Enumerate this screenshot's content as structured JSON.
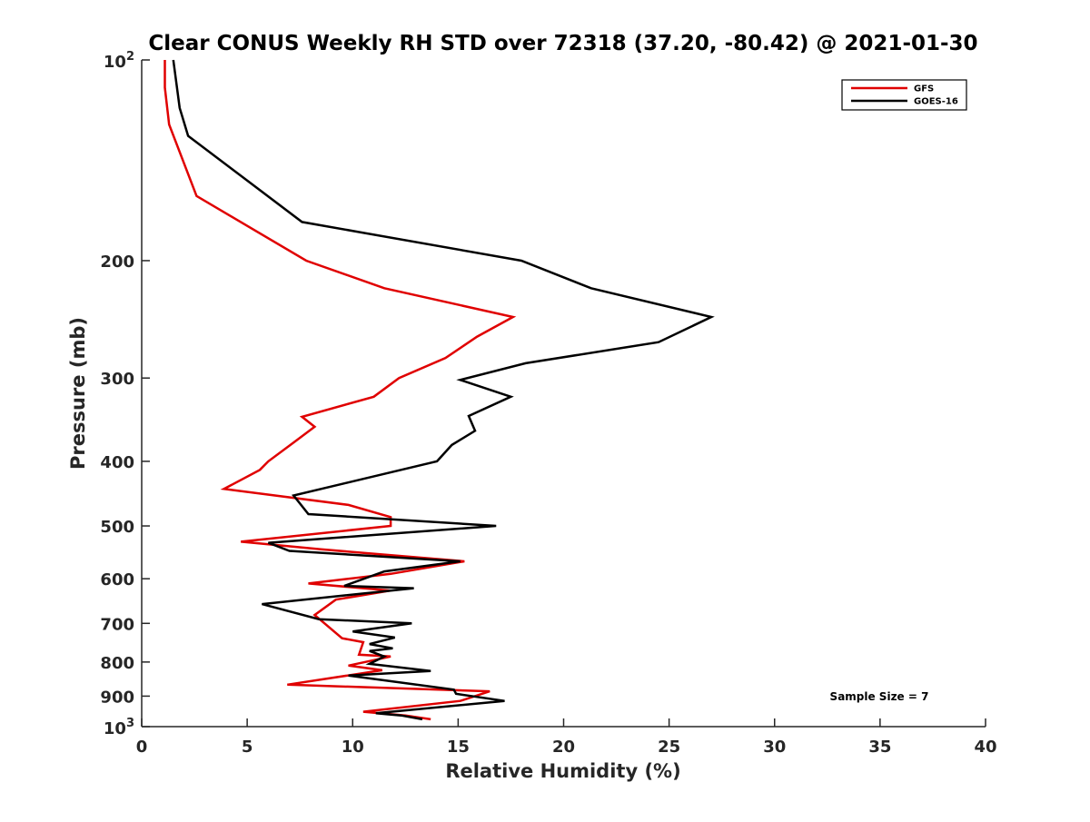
{
  "chart_data": {
    "type": "line",
    "title": "Clear CONUS Weekly RH STD over 72318 (37.20, -80.42) @ 2021-01-30",
    "xlabel": "Relative Humidity (%)",
    "ylabel": "Pressure (mb)",
    "xlim": [
      0,
      40
    ],
    "ylim": [
      100,
      1000
    ],
    "y_scale": "log",
    "y_reversed": true,
    "x_ticks": [
      0,
      5,
      10,
      15,
      20,
      25,
      30,
      35,
      40
    ],
    "x_tick_labels": [
      "0",
      "5",
      "10",
      "15",
      "20",
      "25",
      "30",
      "35",
      "40"
    ],
    "y_ticks": [
      200,
      300,
      400,
      500,
      600,
      700,
      800,
      900
    ],
    "y_tick_labels": [
      "200",
      "300",
      "400",
      "500",
      "600",
      "700",
      "800",
      "900"
    ],
    "y_end_ticks": [
      {
        "value": 100,
        "base": "10",
        "exp": "2"
      },
      {
        "value": 1000,
        "base": "10",
        "exp": "3"
      }
    ],
    "grid": false,
    "legend_position": "top-right",
    "annotation": "Sample Size = 7",
    "series": [
      {
        "name": "GFS",
        "color": "#e00000",
        "points": [
          [
            1.1,
            100
          ],
          [
            1.1,
            110
          ],
          [
            1.3,
            125
          ],
          [
            2.6,
            160
          ],
          [
            7.8,
            200
          ],
          [
            11.5,
            220
          ],
          [
            17.6,
            243
          ],
          [
            15.9,
            260
          ],
          [
            14.4,
            280
          ],
          [
            12.2,
            300
          ],
          [
            11.0,
            320
          ],
          [
            7.6,
            343
          ],
          [
            8.2,
            355
          ],
          [
            7.2,
            375
          ],
          [
            6.0,
            400
          ],
          [
            5.6,
            412
          ],
          [
            3.9,
            440
          ],
          [
            9.8,
            465
          ],
          [
            11.8,
            485
          ],
          [
            11.8,
            500
          ],
          [
            4.7,
            528
          ],
          [
            8.5,
            542
          ],
          [
            15.3,
            565
          ],
          [
            11.8,
            590
          ],
          [
            7.9,
            610
          ],
          [
            11.8,
            625
          ],
          [
            9.2,
            645
          ],
          [
            8.2,
            680
          ],
          [
            9.5,
            737
          ],
          [
            10.5,
            747
          ],
          [
            10.3,
            780
          ],
          [
            11.8,
            785
          ],
          [
            9.8,
            810
          ],
          [
            11.4,
            823
          ],
          [
            6.9,
            865
          ],
          [
            16.5,
            885
          ],
          [
            15.1,
            915
          ],
          [
            10.5,
            950
          ],
          [
            12.5,
            962
          ],
          [
            13.7,
            975
          ]
        ]
      },
      {
        "name": "GOES-16",
        "color": "#000000",
        "points": [
          [
            1.5,
            100
          ],
          [
            1.8,
            118
          ],
          [
            2.2,
            130
          ],
          [
            4.8,
            150
          ],
          [
            7.6,
            175
          ],
          [
            18.0,
            200
          ],
          [
            21.3,
            220
          ],
          [
            27.0,
            243
          ],
          [
            24.5,
            265
          ],
          [
            18.2,
            285
          ],
          [
            15.1,
            302
          ],
          [
            17.5,
            320
          ],
          [
            15.5,
            342
          ],
          [
            15.8,
            360
          ],
          [
            14.7,
            378
          ],
          [
            14.0,
            400
          ],
          [
            7.2,
            450
          ],
          [
            7.9,
            480
          ],
          [
            16.8,
            500
          ],
          [
            6.0,
            530
          ],
          [
            7.0,
            545
          ],
          [
            15.1,
            565
          ],
          [
            11.5,
            585
          ],
          [
            9.6,
            615
          ],
          [
            12.9,
            620
          ],
          [
            5.7,
            655
          ],
          [
            8.4,
            690
          ],
          [
            12.8,
            700
          ],
          [
            10.0,
            720
          ],
          [
            12.0,
            735
          ],
          [
            10.8,
            752
          ],
          [
            11.9,
            763
          ],
          [
            10.8,
            770
          ],
          [
            11.5,
            785
          ],
          [
            10.8,
            805
          ],
          [
            13.7,
            825
          ],
          [
            9.8,
            838
          ],
          [
            14.8,
            880
          ],
          [
            14.9,
            893
          ],
          [
            17.2,
            915
          ],
          [
            11.1,
            955
          ],
          [
            12.3,
            962
          ],
          [
            13.3,
            975
          ]
        ]
      }
    ]
  }
}
